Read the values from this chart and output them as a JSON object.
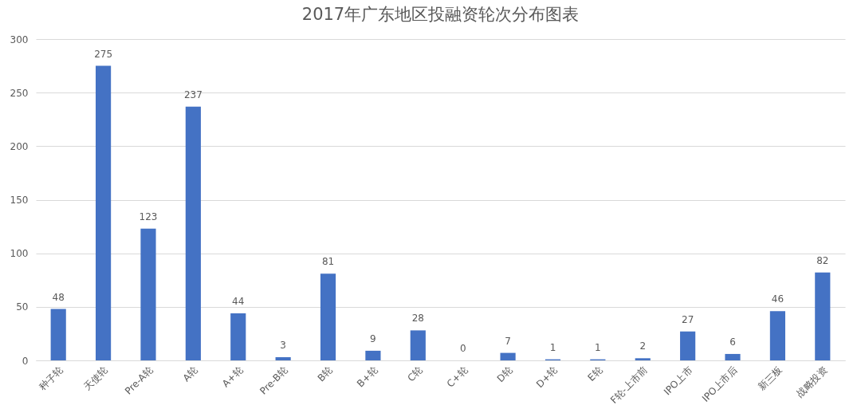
{
  "chart_data": {
    "type": "bar",
    "title": "2017年广东地区投融资轮次分布图表",
    "categories": [
      "种子轮",
      "天使轮",
      "Pre-A轮",
      "A轮",
      "A+轮",
      "Pre-B轮",
      "B轮",
      "B+轮",
      "C轮",
      "C+轮",
      "D轮",
      "D+轮",
      "E轮",
      "F轮-上市前",
      "IPO上市",
      "IPO上市后",
      "新三板",
      "战略投资"
    ],
    "values": [
      48,
      275,
      123,
      237,
      44,
      3,
      81,
      9,
      28,
      0,
      7,
      1,
      1,
      2,
      27,
      6,
      46,
      82
    ],
    "color": "#4472c4",
    "ylim": [
      0,
      300
    ],
    "yticks": [
      0,
      50,
      100,
      150,
      200,
      250,
      300
    ],
    "grid": "y",
    "data_labels": true
  }
}
